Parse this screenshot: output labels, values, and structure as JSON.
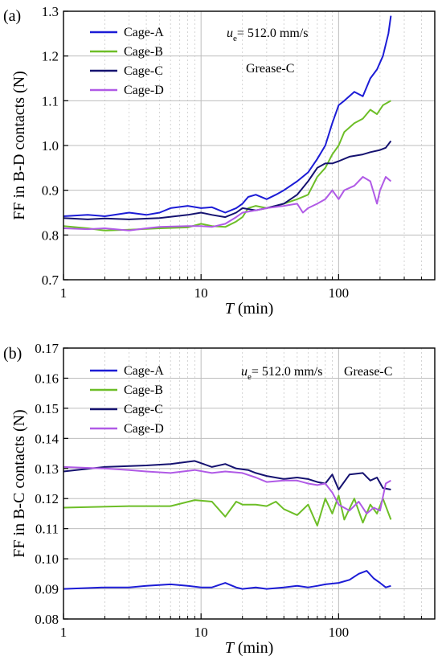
{
  "chart_data": [
    {
      "panel_label": "(a)",
      "type": "line",
      "xlabel_var": "T",
      "xlabel_unit": " (min)",
      "ylabel": "FF in B-D contacts (N)",
      "xscale": "log",
      "xlim": [
        1,
        500
      ],
      "ylim": [
        0.7,
        1.3
      ],
      "yticks": [
        "0.7",
        "0.8",
        "0.9",
        "1.0",
        "1.1",
        "1.2",
        "1.3"
      ],
      "xticks": [
        {
          "value": 1,
          "label": "1"
        },
        {
          "value": 10,
          "label": "10"
        },
        {
          "value": 100,
          "label": "100"
        }
      ],
      "grid": true,
      "legend_position": "top-left",
      "annotation_velocity": {
        "symbol": "u",
        "sub": "e",
        "text": "= 512.0 mm/s"
      },
      "annotation_grease": "Grease-C",
      "series": [
        {
          "name": "Cage-A",
          "color": "#1c1cd6",
          "points": [
            [
              1,
              0.842
            ],
            [
              1.5,
              0.845
            ],
            [
              2,
              0.842
            ],
            [
              3,
              0.85
            ],
            [
              4,
              0.845
            ],
            [
              5,
              0.85
            ],
            [
              6,
              0.86
            ],
            [
              8,
              0.865
            ],
            [
              10,
              0.86
            ],
            [
              12,
              0.862
            ],
            [
              15,
              0.85
            ],
            [
              18,
              0.86
            ],
            [
              20,
              0.87
            ],
            [
              22,
              0.885
            ],
            [
              25,
              0.89
            ],
            [
              30,
              0.88
            ],
            [
              35,
              0.89
            ],
            [
              40,
              0.9
            ],
            [
              50,
              0.92
            ],
            [
              60,
              0.94
            ],
            [
              70,
              0.97
            ],
            [
              80,
              1.0
            ],
            [
              90,
              1.05
            ],
            [
              100,
              1.09
            ],
            [
              110,
              1.1
            ],
            [
              130,
              1.12
            ],
            [
              150,
              1.11
            ],
            [
              170,
              1.15
            ],
            [
              190,
              1.17
            ],
            [
              210,
              1.2
            ],
            [
              230,
              1.25
            ],
            [
              240,
              1.29
            ]
          ]
        },
        {
          "name": "Cage-B",
          "color": "#6dbe27",
          "points": [
            [
              1,
              0.82
            ],
            [
              1.5,
              0.815
            ],
            [
              2,
              0.81
            ],
            [
              3,
              0.812
            ],
            [
              5,
              0.815
            ],
            [
              8,
              0.817
            ],
            [
              10,
              0.825
            ],
            [
              12,
              0.82
            ],
            [
              15,
              0.818
            ],
            [
              18,
              0.83
            ],
            [
              20,
              0.84
            ],
            [
              22,
              0.86
            ],
            [
              25,
              0.865
            ],
            [
              30,
              0.86
            ],
            [
              35,
              0.865
            ],
            [
              40,
              0.87
            ],
            [
              50,
              0.88
            ],
            [
              60,
              0.89
            ],
            [
              70,
              0.93
            ],
            [
              80,
              0.95
            ],
            [
              90,
              0.98
            ],
            [
              100,
              1.0
            ],
            [
              110,
              1.03
            ],
            [
              130,
              1.05
            ],
            [
              150,
              1.06
            ],
            [
              170,
              1.08
            ],
            [
              190,
              1.07
            ],
            [
              210,
              1.09
            ],
            [
              240,
              1.1
            ]
          ]
        },
        {
          "name": "Cage-C",
          "color": "#151270",
          "points": [
            [
              1,
              0.838
            ],
            [
              1.5,
              0.835
            ],
            [
              2,
              0.837
            ],
            [
              3,
              0.835
            ],
            [
              5,
              0.838
            ],
            [
              8,
              0.845
            ],
            [
              10,
              0.85
            ],
            [
              12,
              0.845
            ],
            [
              15,
              0.84
            ],
            [
              18,
              0.85
            ],
            [
              20,
              0.86
            ],
            [
              25,
              0.855
            ],
            [
              30,
              0.86
            ],
            [
              40,
              0.87
            ],
            [
              50,
              0.89
            ],
            [
              60,
              0.92
            ],
            [
              70,
              0.95
            ],
            [
              80,
              0.96
            ],
            [
              90,
              0.96
            ],
            [
              100,
              0.965
            ],
            [
              120,
              0.975
            ],
            [
              150,
              0.98
            ],
            [
              170,
              0.985
            ],
            [
              200,
              0.99
            ],
            [
              220,
              0.995
            ],
            [
              240,
              1.01
            ]
          ]
        },
        {
          "name": "Cage-D",
          "color": "#b05ae6",
          "points": [
            [
              1,
              0.815
            ],
            [
              1.5,
              0.813
            ],
            [
              2,
              0.815
            ],
            [
              3,
              0.81
            ],
            [
              4,
              0.815
            ],
            [
              5,
              0.818
            ],
            [
              8,
              0.82
            ],
            [
              10,
              0.82
            ],
            [
              12,
              0.818
            ],
            [
              15,
              0.825
            ],
            [
              18,
              0.84
            ],
            [
              20,
              0.85
            ],
            [
              25,
              0.855
            ],
            [
              30,
              0.86
            ],
            [
              40,
              0.865
            ],
            [
              50,
              0.87
            ],
            [
              55,
              0.85
            ],
            [
              60,
              0.86
            ],
            [
              70,
              0.87
            ],
            [
              80,
              0.88
            ],
            [
              90,
              0.9
            ],
            [
              100,
              0.88
            ],
            [
              110,
              0.9
            ],
            [
              130,
              0.91
            ],
            [
              150,
              0.93
            ],
            [
              170,
              0.92
            ],
            [
              190,
              0.87
            ],
            [
              200,
              0.9
            ],
            [
              220,
              0.93
            ],
            [
              240,
              0.92
            ]
          ]
        }
      ]
    },
    {
      "panel_label": "(b)",
      "type": "line",
      "xlabel_var": "T",
      "xlabel_unit": " (min)",
      "ylabel": "FF in B-C contacts (N)",
      "xscale": "log",
      "xlim": [
        1,
        500
      ],
      "ylim": [
        0.08,
        0.17
      ],
      "yticks": [
        "0.08",
        "0.09",
        "0.10",
        "0.11",
        "0.12",
        "0.13",
        "0.14",
        "0.15",
        "0.16",
        "0.17"
      ],
      "xticks": [
        {
          "value": 1,
          "label": "1"
        },
        {
          "value": 10,
          "label": "10"
        },
        {
          "value": 100,
          "label": "100"
        }
      ],
      "grid": true,
      "legend_position": "top-left",
      "annotation_velocity": {
        "symbol": "u",
        "sub": "e",
        "text": "= 512.0 mm/s"
      },
      "annotation_grease": "Grease-C",
      "series": [
        {
          "name": "Cage-A",
          "color": "#1c1cd6",
          "points": [
            [
              1,
              0.09
            ],
            [
              2,
              0.0905
            ],
            [
              3,
              0.0905
            ],
            [
              4,
              0.091
            ],
            [
              6,
              0.0915
            ],
            [
              8,
              0.091
            ],
            [
              10,
              0.0905
            ],
            [
              12,
              0.0905
            ],
            [
              15,
              0.092
            ],
            [
              18,
              0.0905
            ],
            [
              20,
              0.09
            ],
            [
              25,
              0.0905
            ],
            [
              30,
              0.09
            ],
            [
              40,
              0.0905
            ],
            [
              50,
              0.091
            ],
            [
              60,
              0.0905
            ],
            [
              70,
              0.091
            ],
            [
              80,
              0.0915
            ],
            [
              100,
              0.092
            ],
            [
              120,
              0.093
            ],
            [
              140,
              0.095
            ],
            [
              160,
              0.096
            ],
            [
              180,
              0.0935
            ],
            [
              200,
              0.092
            ],
            [
              220,
              0.0905
            ],
            [
              240,
              0.091
            ]
          ]
        },
        {
          "name": "Cage-B",
          "color": "#6dbe27",
          "points": [
            [
              1,
              0.117
            ],
            [
              3,
              0.1175
            ],
            [
              6,
              0.1175
            ],
            [
              9,
              0.1195
            ],
            [
              12,
              0.119
            ],
            [
              15,
              0.114
            ],
            [
              18,
              0.119
            ],
            [
              20,
              0.118
            ],
            [
              25,
              0.118
            ],
            [
              30,
              0.1175
            ],
            [
              35,
              0.119
            ],
            [
              40,
              0.1165
            ],
            [
              50,
              0.1145
            ],
            [
              60,
              0.118
            ],
            [
              70,
              0.111
            ],
            [
              80,
              0.12
            ],
            [
              90,
              0.115
            ],
            [
              100,
              0.121
            ],
            [
              110,
              0.113
            ],
            [
              130,
              0.12
            ],
            [
              150,
              0.112
            ],
            [
              170,
              0.118
            ],
            [
              190,
              0.115
            ],
            [
              210,
              0.12
            ],
            [
              240,
              0.113
            ]
          ]
        },
        {
          "name": "Cage-C",
          "color": "#151270",
          "points": [
            [
              1,
              0.129
            ],
            [
              2,
              0.1305
            ],
            [
              4,
              0.131
            ],
            [
              6,
              0.1315
            ],
            [
              9,
              0.1325
            ],
            [
              12,
              0.1305
            ],
            [
              15,
              0.1315
            ],
            [
              18,
              0.13
            ],
            [
              22,
              0.1295
            ],
            [
              25,
              0.1285
            ],
            [
              30,
              0.1275
            ],
            [
              40,
              0.1265
            ],
            [
              50,
              0.127
            ],
            [
              60,
              0.1265
            ],
            [
              70,
              0.1255
            ],
            [
              80,
              0.125
            ],
            [
              90,
              0.128
            ],
            [
              100,
              0.123
            ],
            [
              120,
              0.128
            ],
            [
              150,
              0.1285
            ],
            [
              170,
              0.126
            ],
            [
              190,
              0.127
            ],
            [
              210,
              0.1235
            ],
            [
              240,
              0.123
            ]
          ]
        },
        {
          "name": "Cage-D",
          "color": "#b05ae6",
          "points": [
            [
              1,
              0.1305
            ],
            [
              2,
              0.13
            ],
            [
              3,
              0.1295
            ],
            [
              4,
              0.129
            ],
            [
              6,
              0.1285
            ],
            [
              9,
              0.1295
            ],
            [
              12,
              0.1285
            ],
            [
              15,
              0.129
            ],
            [
              20,
              0.1285
            ],
            [
              25,
              0.127
            ],
            [
              30,
              0.1255
            ],
            [
              40,
              0.126
            ],
            [
              50,
              0.126
            ],
            [
              60,
              0.125
            ],
            [
              70,
              0.1245
            ],
            [
              80,
              0.125
            ],
            [
              90,
              0.122
            ],
            [
              100,
              0.118
            ],
            [
              120,
              0.116
            ],
            [
              140,
              0.119
            ],
            [
              160,
              0.115
            ],
            [
              180,
              0.117
            ],
            [
              200,
              0.116
            ],
            [
              220,
              0.125
            ],
            [
              240,
              0.126
            ]
          ]
        }
      ]
    }
  ]
}
